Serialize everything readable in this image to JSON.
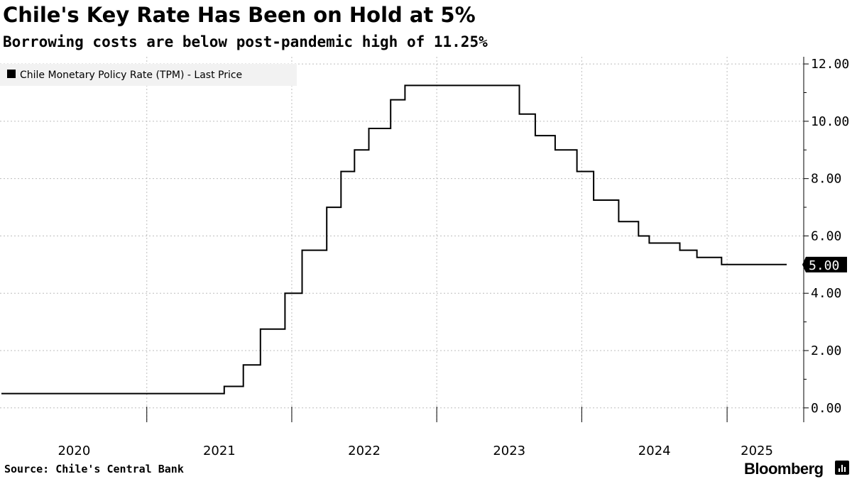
{
  "header": {
    "title": "Chile's Key Rate Has Been on Hold at 5%",
    "subtitle": "Borrowing costs are below post-pandemic high of 11.25%"
  },
  "footer": {
    "source": "Source: Chile's Central Bank",
    "brand": "Bloomberg"
  },
  "chart_data": {
    "type": "line",
    "step": true,
    "title": "Chile's Key Rate Has Been on Hold at 5%",
    "subtitle": "Borrowing costs are below post-pandemic high of 11.25%",
    "xlabel": "",
    "ylabel": "",
    "ylim": [
      -0.5,
      12.25
    ],
    "yticks": [
      "0.00",
      "2.00",
      "4.00",
      "6.00",
      "8.00",
      "10.00",
      "12.00"
    ],
    "xticks": [
      "2020",
      "2021",
      "2022",
      "2023",
      "2024",
      "2025"
    ],
    "xlim": [
      "2020-01-01",
      "2025-05-31"
    ],
    "grid": true,
    "legend": "top-left",
    "last_value_label": "5.00",
    "series": [
      {
        "name": "Chile Monetary Policy Rate (TPM) - Last Price",
        "color": "#000000",
        "points": [
          [
            "2020-01-01",
            0.5
          ],
          [
            "2021-07-15",
            0.75
          ],
          [
            "2021-09-01",
            1.5
          ],
          [
            "2021-10-14",
            2.75
          ],
          [
            "2021-12-15",
            4.0
          ],
          [
            "2022-01-27",
            5.5
          ],
          [
            "2022-03-30",
            7.0
          ],
          [
            "2022-05-05",
            8.25
          ],
          [
            "2022-06-08",
            9.0
          ],
          [
            "2022-07-14",
            9.75
          ],
          [
            "2022-09-07",
            10.75
          ],
          [
            "2022-10-13",
            11.25
          ],
          [
            "2023-07-28",
            10.25
          ],
          [
            "2023-09-06",
            9.5
          ],
          [
            "2023-10-26",
            9.0
          ],
          [
            "2023-12-20",
            8.25
          ],
          [
            "2024-01-31",
            7.25
          ],
          [
            "2024-04-03",
            6.5
          ],
          [
            "2024-05-23",
            6.0
          ],
          [
            "2024-06-19",
            5.75
          ],
          [
            "2024-09-04",
            5.5
          ],
          [
            "2024-10-17",
            5.25
          ],
          [
            "2024-12-18",
            5.0
          ],
          [
            "2025-05-31",
            5.0
          ]
        ]
      }
    ]
  }
}
